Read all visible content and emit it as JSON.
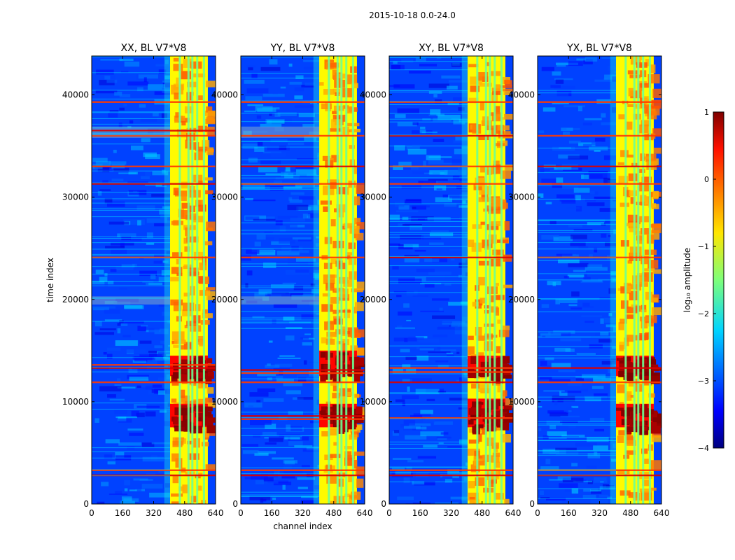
{
  "suptitle": "2015-10-18 0.0-24.0",
  "colormap": "jet",
  "chart_data": [
    {
      "type": "heatmap",
      "title": "XX, BL V7*V8",
      "xlabel": "",
      "ylabel": "time index",
      "xlim": [
        0,
        640
      ],
      "ylim": [
        0,
        43800
      ],
      "xticks": [
        0,
        160,
        320,
        480,
        640
      ],
      "yticks": [
        0,
        10000,
        20000,
        30000,
        40000
      ],
      "rfi_band_channels": [
        405,
        600
      ],
      "band_spike_channels": [
        455,
        500,
        520,
        545,
        580
      ],
      "flagged_rows": [
        2800,
        3300,
        11900,
        13300,
        13600,
        24100,
        31300,
        33000,
        36000,
        36500,
        39300
      ],
      "bright_time_blocks": [
        [
          7500,
          9800
        ],
        [
          12500,
          14500
        ]
      ],
      "grey_time_blocks": [
        [
          35800,
          36900
        ],
        [
          19500,
          20300
        ]
      ],
      "clim": [
        -4,
        1
      ]
    },
    {
      "type": "heatmap",
      "title": "YY, BL V7*V8",
      "xlabel": "channel index",
      "ylabel": "",
      "xlim": [
        0,
        640
      ],
      "ylim": [
        0,
        43800
      ],
      "xticks": [
        0,
        160,
        320,
        480,
        640
      ],
      "yticks": [
        0,
        10000,
        20000,
        30000,
        40000
      ],
      "rfi_band_channels": [
        405,
        600
      ],
      "band_spike_channels": [
        455,
        500,
        520,
        545,
        580
      ],
      "flagged_rows": [
        2800,
        3300,
        8300,
        8600,
        11900,
        12800,
        13100,
        24100,
        31300,
        33000,
        36000,
        39300
      ],
      "bright_time_blocks": [
        [
          7500,
          9800
        ],
        [
          12500,
          15000
        ]
      ],
      "grey_time_blocks": [
        [
          35800,
          36900
        ],
        [
          19500,
          20300
        ]
      ],
      "clim": [
        -4,
        1
      ]
    },
    {
      "type": "heatmap",
      "title": "XY, BL V7*V8",
      "xlabel": "",
      "ylabel": "",
      "xlim": [
        0,
        640
      ],
      "ylim": [
        0,
        43800
      ],
      "xticks": [
        0,
        160,
        320,
        480,
        640
      ],
      "yticks": [
        0,
        10000,
        20000,
        30000,
        40000
      ],
      "rfi_band_channels": [
        405,
        600
      ],
      "band_spike_channels": [
        455,
        500,
        520,
        545,
        580
      ],
      "flagged_rows": [
        2800,
        3300,
        8400,
        11900,
        12900,
        13300,
        24100,
        31300,
        33000,
        36000,
        39300
      ],
      "bright_time_blocks": [
        [
          7500,
          10300
        ],
        [
          12500,
          14500
        ]
      ],
      "grey_time_blocks": [],
      "clim": [
        -4,
        1
      ]
    },
    {
      "type": "heatmap",
      "title": "YX, BL V7*V8",
      "xlabel": "",
      "ylabel": "",
      "xlim": [
        0,
        640
      ],
      "ylim": [
        0,
        43800
      ],
      "xticks": [
        0,
        160,
        320,
        480,
        640
      ],
      "yticks": [
        0,
        10000,
        20000,
        30000,
        40000
      ],
      "rfi_band_channels": [
        405,
        600
      ],
      "band_spike_channels": [
        455,
        500,
        520,
        545,
        580
      ],
      "flagged_rows": [
        2800,
        3300,
        11900,
        13300,
        24100,
        31300,
        33000,
        36000,
        39300
      ],
      "bright_time_blocks": [
        [
          7500,
          9800
        ],
        [
          12500,
          14500
        ]
      ],
      "grey_time_blocks": [],
      "clim": [
        -4,
        1
      ]
    }
  ],
  "colorbar": {
    "label": "log₁₀ amplitude",
    "min": -4,
    "max": 1,
    "ticks": [
      1,
      0,
      -1,
      -2,
      -3,
      -4
    ],
    "tick_labels": [
      "1",
      "0",
      "−1",
      "−2",
      "−3",
      "−4"
    ]
  }
}
